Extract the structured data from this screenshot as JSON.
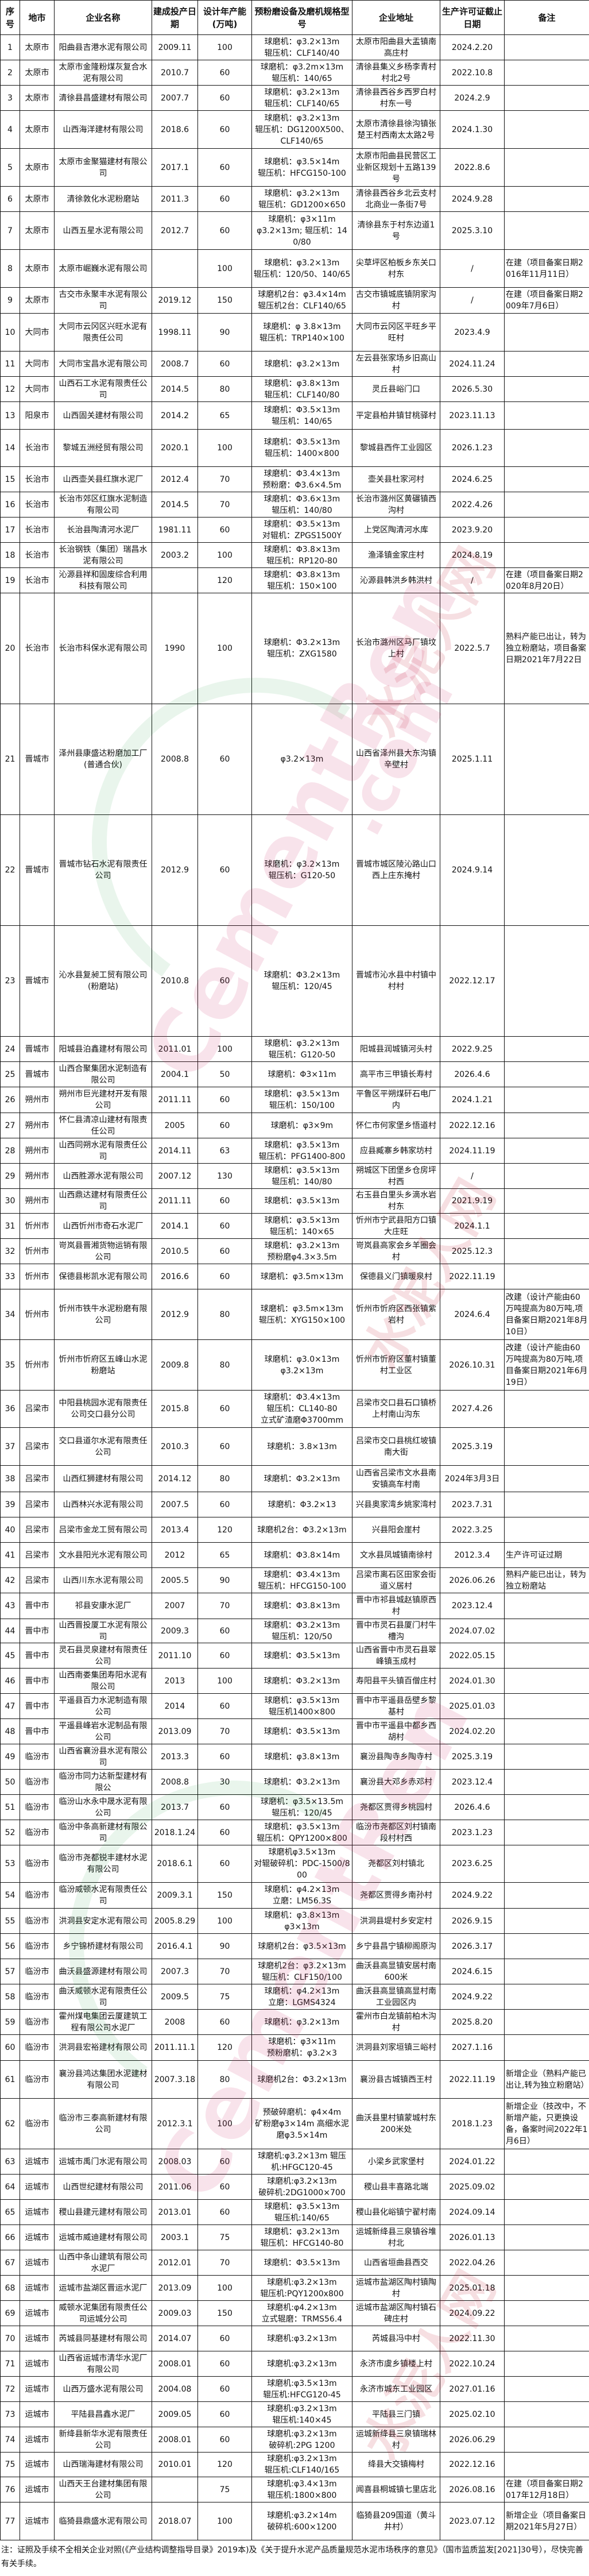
{
  "header": [
    "序号",
    "地市",
    "企业名称",
    "建成投产日期",
    "设计年产能(万吨)",
    "预粉磨设备及磨机规格型号",
    "企业地址",
    "生产许可证截止日期",
    "备注"
  ],
  "rows": [
    [
      "1",
      "太原市",
      "阳曲县吉港水泥有限公司",
      "2009.11",
      "100",
      "球磨机：φ3.2×13m\n辊压机：CLF140/40",
      "太原市阳曲县大盂镇南高庄村",
      "2024.2.20",
      ""
    ],
    [
      "2",
      "太原市",
      "太原市金隆粉煤灰复合水泥有限公司",
      "2010.7",
      "60",
      "球磨机：φ3.2m×13m\n辊压机：140/65",
      "清徐县集义乡杨李青村村北2号",
      "2022.10.8",
      ""
    ],
    [
      "3",
      "太原市",
      "清徐县昌盛建材有限公司",
      "2007.7",
      "60",
      "球磨机：φ3.2×13m\n辊压机：CLF140/65",
      "清徐县西谷乡西罗白村村东一号",
      "2024.2.9",
      ""
    ],
    [
      "4",
      "太原市",
      "山西海洋建材有限公司",
      "2018.6",
      "60",
      "球磨机：φ3.2×13m\n辊压机：DG1200X500、CLF140/65",
      "太原市清徐县徐沟镇张楚王村西南太太路2号",
      "2024.1.30",
      ""
    ],
    [
      "5",
      "太原市",
      "太原市金聚猫建材有限公司",
      "2017.1",
      "60",
      "球磨机：φ3.5×14m\n辊压机：HFCG150-100",
      "太原市阳曲县民营区工业新区规划十五路139号",
      "2022.8.6",
      ""
    ],
    [
      "6",
      "太原市",
      "清徐敦化水泥粉磨站",
      "2011.3",
      "60",
      "球磨机：φ3.2×13m\n辊压机：GD1200×650",
      "清徐县西谷乡北云支村北商业一条街7号",
      "2024.9.28",
      ""
    ],
    [
      "7",
      "太原市",
      "山西五星水泥有限公司",
      "2012.7",
      "60",
      "球磨机：φ3×11m\nφ3.2×13m; 辊压机：140/80",
      "清徐县东于村东边道1号",
      "2025.3.10",
      ""
    ],
    [
      "8",
      "太原市",
      "太原市崛巍水泥有限公司",
      "",
      "100",
      "球磨机：φ3.2×13m\n辊压机：120/50、140/65",
      "尖草坪区柏板乡东关口村东",
      "/",
      "在建（项目备案日期2016年11月11日）"
    ],
    [
      "9",
      "太原市",
      "古交市永聚丰水泥有限公司",
      "2019.12",
      "150",
      "球磨机2台：φ3.4×14m\n辊压机2台：CLF140/65",
      "古交市镇城底镇阴家沟村",
      "/",
      "在建（项目备案日期2009年7月6日）"
    ],
    [
      "10",
      "大同市",
      "大同市云冈区兴旺水泥有限责任公司",
      "1998.11",
      "90",
      "球磨机：φ 3.8×13m\n辊压机：TRP140×100",
      "大同市云冈区平旺乡平旺村",
      "2023.4.9",
      ""
    ],
    [
      "11",
      "大同市",
      "大同市宝昌水泥有限公司",
      "2008.7",
      "60",
      "球磨机：φ3.2×13m",
      "左云县张家场乡旧高山村",
      "2024.11.24",
      ""
    ],
    [
      "12",
      "大同市",
      "山西石工水泥有限责任公司",
      "2014.5",
      "80",
      "球磨机：φ3.8×13m\n辊压机：CLF140/80",
      "灵丘县峪门口",
      "2026.5.30",
      ""
    ],
    [
      "13",
      "阳泉市",
      "山西固关建材有限公司",
      "2014.2",
      "65",
      "球磨机：Φ3.5×13m\n辊压机：140/65",
      "平定县柏井镇甘桃驿村",
      "2023.11.13",
      ""
    ],
    [
      "14",
      "长治市",
      "黎城五洲经贸有限公司",
      "2020.1",
      "100",
      "球磨机：Φ3.5×13m\n辊压机：1400×800",
      "黎城县西仵工业园区",
      "2026.1.23",
      ""
    ],
    [
      "15",
      "长治市",
      "山西壶关县红旗水泥厂",
      "2012.4",
      "70",
      "球磨机：Φ3.4×13m\n预粉磨：Φ3.6×4.5m",
      "壶关县杜家河村",
      "2024.6.25",
      ""
    ],
    [
      "16",
      "长治市",
      "长治市郊区红旗水泥制造有限公司",
      "2014.5",
      "70",
      "球磨机：Φ3.6×13m\n辊压机：140/80",
      "长治市潞州区黄碾镇西沟村",
      "2022.4.26",
      ""
    ],
    [
      "17",
      "长治市",
      "长治县陶清河水泥厂",
      "1981.11",
      "60",
      "球磨机：Φ3.5×13m\n对辊机：ZPGS1500Y",
      "上党区陶清河水库",
      "2023.9.20",
      ""
    ],
    [
      "18",
      "长治市",
      "长治钢铁（集团）瑞昌水泥有限公司",
      "2003.2",
      "100",
      "球磨机：Φ3.8×13m\n辊压机：RP120-80",
      "渔泽镇金家庄村",
      "2024.8.19",
      ""
    ],
    [
      "19",
      "长治市",
      "沁源县祥和固废综合利用科技有限公司",
      "",
      "120",
      "球磨机：Φ3.8×13m\n辊压机：150×100",
      "沁源县韩洪乡韩洪村",
      "/",
      "在建（项目备案日期2020年8月20日）"
    ],
    [
      "20",
      "长治市",
      "长治市科保水泥有限公司",
      "1990",
      "100",
      "球磨机：Φ3.2×13m\n辊压机：ZXG1580",
      "长治市潞州区马厂镇坟上村",
      "2022.5.7",
      "熟料产能已出让，转为独立粉磨站，项目备案日期2021年7月22日"
    ],
    [
      "21",
      "晋城市",
      "泽州县康盛达粉磨加工厂(普通合伙)",
      "2008.8",
      "60",
      "φ3.2×13m",
      "山西省泽州县大东沟镇辛壁村",
      "2025.1.11",
      ""
    ],
    [
      "22",
      "晋城市",
      "晋城市钻石水泥有限责任公司",
      "2012.9",
      "60",
      "球磨机：φ3.2×13m\n辊压机：G120-50",
      "晋城市城区陵沁路山口西上庄东掩村",
      "2024.9.14",
      ""
    ],
    [
      "23",
      "晋城市",
      "沁水县复昶工贸有限公司(粉磨站)",
      "2010.8",
      "60",
      "球磨机：Φ3.2×13m\n辊压机：120/45",
      "晋城市沁水县中村镇中村村",
      "2022.12.17",
      ""
    ],
    [
      "24",
      "晋城市",
      "阳城县泊鑫建材有限公司",
      "2011.01",
      "100",
      "球磨机：φ3.2×13m\n辊压机：G120-50",
      "阳城县润城镇河头村",
      "2022.9.25",
      ""
    ],
    [
      "25",
      "晋城市",
      "山西合聚集团水泥制造有限公司",
      "2004.1",
      "50",
      "球磨机：Φ3×11m",
      "高平市三甲镇长寿村",
      "2026.4.6",
      ""
    ],
    [
      "26",
      "朔州市",
      "朔州市巨光建材开发有限公司",
      "2011.11",
      "60",
      "球磨机：φ3.5×13m\n辊压机：150/100",
      "平鲁区平朔煤矸石电厂内",
      "2024.1.21",
      ""
    ],
    [
      "27",
      "朔州市",
      "怀仁县清凉山建材有限责任公司",
      "2005",
      "60",
      "球磨机：φ3×9m",
      "怀仁市何家堡乡悟道村",
      "2022.12.16",
      ""
    ],
    [
      "28",
      "朔州市",
      "山西同朔水泥有限责任公司",
      "2014.11",
      "63",
      "球磨机：φ3.5×13m\n辊压机：PFG1400-800",
      "应县臧寨乡韩家坊村",
      "2024.11.19",
      ""
    ],
    [
      "29",
      "朔州市",
      "山西胜源水泥有限公司",
      "2007.12",
      "130",
      "球磨机：φ3.5×13m\n辊压机：140/80",
      "朔城区下团堡乡仓房坪村西",
      "/",
      ""
    ],
    [
      "30",
      "朔州市",
      "山西鼎达建材有限责任公司",
      "2011.11",
      "60",
      "球磨机：φ3.5×13m",
      "右玉县白里头乡滴水岩村东",
      "2021.9.19",
      ""
    ],
    [
      "31",
      "忻州市",
      "山西忻州市奇石水泥厂",
      "2014.1",
      "60",
      "球磨机：φ3.5×13m\n辊压机：140×65",
      "忻州市宁武县阳方口镇大庄旺",
      "2024.1.1",
      ""
    ],
    [
      "32",
      "忻州市",
      "岢岚县晋湘货物运销有限公司",
      "2010.5",
      "60",
      "球磨机：φ3.2×13m\n预粉磨φ4.3×3.5m",
      "岢岚县高家会乡羊圈会村",
      "2025.12.3",
      ""
    ],
    [
      "33",
      "忻州市",
      "保德县彬凯水泥有限公司",
      "2016.6",
      "60",
      "球磨机：φ3.5m×13m",
      "保德县义门镇暖泉村",
      "2022.11.19",
      ""
    ],
    [
      "34",
      "忻州市",
      "忻州市铁牛水泥粉磨有限公司",
      "2012.9",
      "80",
      "球磨机：φ3.5m×13m\n辊压机：XYG150×100",
      "忻州市忻府区西张镇紫岩村",
      "2024.6.4",
      "改建（设计产能由60万吨提高为80万吨,项目备案日期2021年8月10日）"
    ],
    [
      "35",
      "忻州市",
      "忻州市忻府区五峰山水泥粉磨站",
      "2009.8",
      "80",
      "球磨机：φ3.0×13m\nφ3.2×13m",
      "忻州市忻府区董村镇董村工业区",
      "2026.10.31",
      "改建（设计产能由60万吨提高为80万吨,项目备案日期2021年6月19日）"
    ],
    [
      "36",
      "吕梁市",
      "中阳县桃园水泥有限责任公司交口县分公司",
      "2015.8",
      "60",
      "球磨机：Φ3.4×13m\n辊压机：CL140-80\n立式矿渣磨Φ3700mm",
      "吕梁市交口县石口镇桥上村南山沟东",
      "2027.4.26",
      ""
    ],
    [
      "37",
      "吕梁市",
      "交口县道尔水泥有限责任公司",
      "2010.3",
      "60",
      "球磨机：3.8×13m",
      "吕梁市交口县桃红坡镇南大街",
      "2025.3.19",
      ""
    ],
    [
      "38",
      "吕梁市",
      "山西红狮建材有限公司",
      "2014.12",
      "80",
      "球磨机：Φ3.2×13m",
      "山西省吕梁市文水县南安镇高车村南",
      "2024年3月3日",
      ""
    ],
    [
      "39",
      "吕梁市",
      "山西林兴水泥有限公司",
      "2007.5",
      "60",
      "球磨机：Φ3.2×13",
      "兴县奥家湾乡姚家湾村",
      "2023.7.31",
      ""
    ],
    [
      "40",
      "吕梁市",
      "吕梁市金龙工贸有限公司",
      "2013.4",
      "120",
      "球磨机2台：Φ3.2×13m",
      "兴县阳会崖村",
      "2022.3.25",
      ""
    ],
    [
      "41",
      "吕梁市",
      "文水县阳光水泥有限公司",
      "2012",
      "65",
      "球磨机：Φ3.8×14m",
      "文水县凤城镇南徐村",
      "2012.3.4",
      "生产许可证过期"
    ],
    [
      "42",
      "吕梁市",
      "山西川东水泥有限公司",
      "2005.5",
      "90",
      "球磨机：Φ3.4×13m\n辊压机：HFCG150-100",
      "吕梁市离石区田家会街道义居村",
      "2026.06.26",
      "熟料产能已出让，转为独立粉磨站"
    ],
    [
      "43",
      "晋中市",
      "祁县安康水泥厂",
      "2007",
      "70",
      "球磨机：Φ3.8×13m",
      "晋中市祁县城赵镇原西村",
      "2023.12.4",
      ""
    ],
    [
      "44",
      "晋中市",
      "山西晋投厦工水泥有限公司",
      "2009.3",
      "60",
      "球磨机：Φ3.2×13m\n辊压机：120/50",
      "晋中市灵石县厦门村牛槽沟",
      "2024.07.02",
      ""
    ],
    [
      "45",
      "晋中市",
      "灵石县灵泉建材有限责任公司",
      "2011.10",
      "60",
      "球磨机：Φ3.5×13m",
      "山西省晋中市灵石县翠峰镇玉成村",
      "2022.05.15",
      ""
    ],
    [
      "46",
      "晋中市",
      "山西南娄集团寿阳水泥有限公司",
      "2013",
      "100",
      "球磨机：Φ3.2×13m",
      "寿阳县平头镇百僧庄村",
      "2024.01.30",
      ""
    ],
    [
      "47",
      "晋中市",
      "平遥县百力水泥制造有限公司",
      "2014",
      "60",
      "球磨机：φ3.5×13m\n辊压机1400×800",
      "晋中市平遥县岳壁乡黎基村",
      "2025.01.03",
      ""
    ],
    [
      "48",
      "晋中市",
      "平遥县峰岩水泥制品有限公司",
      "2013.09",
      "70",
      "球磨机：Φ3.5×13m",
      "晋中市平遥县中都乡西胡村",
      "2024.02.20",
      ""
    ],
    [
      "49",
      "临汾市",
      "山西省襄汾县水泥有限公司",
      "2013.3",
      "60",
      "球磨机：φ3.8×13m",
      "襄汾县陶寺乡陶寺村",
      "2025.3.19",
      ""
    ],
    [
      "50",
      "临汾市",
      "临汾市同力达新型建材有限公",
      "2008.8",
      "30",
      "球磨机：Φ3.2×13m",
      "襄汾县大邓乡赤邓村",
      "2023.12.4",
      ""
    ],
    [
      "51",
      "临汾市",
      "临汾山水永中晟水泥有限公司",
      "2013.7",
      "60",
      "球磨机：φ3.5×13.5m\n辊压机：120/45",
      "尧都区贾得乡桃园村",
      "2026.4.6",
      ""
    ],
    [
      "52",
      "临汾市",
      "临汾中条高新建材有限公司",
      "2018.1.24",
      "60",
      "球磨机：φ3.5×13m\n辊压机：QPY1200×800",
      "临汾市尧都区刘村镇南段村村西",
      "2023.1.23",
      ""
    ],
    [
      "53",
      "临汾市",
      "临汾市尧都锐丰建材水泥有限公司",
      "2018.6.1",
      "60",
      "球磨机φ3.5×13m\n对辊破碎机：PDC-1500/800",
      "尧都区刘村镇北",
      "2023.6.25",
      ""
    ],
    [
      "54",
      "临汾市",
      "临汾威顿水泥有限责任公司",
      "2009.3.1",
      "150",
      "球磨机：φ4.2×13m\n立磨：LM56.3S",
      "尧都区贾得乡南孙村",
      "2024.9.22",
      ""
    ],
    [
      "55",
      "临汾市",
      "洪洞县安定水泥有限公司",
      "2005.8.29",
      "100",
      "球磨机：φ3.8×13m\nφ3×13m",
      "洪洞县堤村乡安定村",
      "2026.9.15",
      ""
    ],
    [
      "56",
      "临汾市",
      "乡宁锦桥建材有限公司",
      "2016.4.1",
      "90",
      "球磨机2台：φ3.5×13m",
      "乡宁县昌宁镇柳阁原沟",
      "2026.3.17",
      ""
    ],
    [
      "57",
      "临汾市",
      "曲沃县盛源建材有限公司",
      "2007.3",
      "70",
      "球磨机2台：φ3.2×13m\n辊压机：CLF150/100",
      "曲沃县高显镇安居村南600米",
      "2024.6.15",
      ""
    ],
    [
      "58",
      "临汾市",
      "曲沃威顿水泥有限责任公司",
      "2009.5",
      "75",
      "球磨机：φ4.2×13m\n立磨：LGMS4324",
      "曲沃县高显镇高显村南工业园区内",
      "2024.9.22",
      ""
    ],
    [
      "59",
      "临汾市",
      "霍州煤电集团云厦建筑工程有限公司水泥厂",
      "2008",
      "60",
      "球磨机：φ3.2×13m",
      "霍州市白龙镇前柏木沟村",
      "2025.8.20",
      ""
    ],
    [
      "60",
      "临汾市",
      "洪洞县宏裕建材有限公司",
      "2011.11.1",
      "120",
      "球磨机：φ3×11m\n预粉磨机：φ3.2×3",
      "洪洞县刘家垣镇三峪村",
      "2027.1.16",
      ""
    ],
    [
      "61",
      "临汾市",
      "襄汾县鸿达集团水泥建材有限公司",
      "2007.3.18",
      "80",
      "球磨机2台：Φ3.2×13m",
      "襄汾县古城镇西王村",
      "2022.11.19",
      "新增企业（熟料产能已出让,转为独立粉磨站）"
    ],
    [
      "62",
      "临汾市",
      "临汾市三泰高新建材有限公司",
      "2012.3.1",
      "100",
      "预破碎磨机：φ4×4m\n矿粉磨φ3×14m 高细水泥磨φ3.5×14m",
      "曲沃县里村镇蒙城村东200米处",
      "2018.1.23",
      "新增企业（技改中，不新增产能，只更换设备，备案时间2022年1月6日）"
    ],
    [
      "63",
      "运城市",
      "运城市禹门水泥有限公司",
      "2008.03",
      "60",
      "球磨机:φ3.2×13m 辊压机:HFGC120-45",
      "小梁乡武家堡村",
      "2024.01.22",
      ""
    ],
    [
      "64",
      "运城市",
      "山西世纪建材有限公司",
      "2011.06",
      "60",
      "球磨机:φ3.2×13m\n破碎机:2DG1000×700",
      "稷山县丰喜路北端",
      "2025.09.02",
      ""
    ],
    [
      "65",
      "运城市",
      "稷山县建元建材有限公司",
      "2013.01",
      "60",
      "球磨机：φ3.5×13m\n辊压机:140/65",
      "稷山县化峪镇宁翟村南",
      "2024.09.14",
      ""
    ],
    [
      "66",
      "运城市",
      "运城市威迪建材有限公司",
      "2003.1",
      "75",
      "球磨机：φ3.2×13m\n辊压机：HFCG140-80",
      "运城新绛县三泉镇谷堆村北",
      "2026.01.13",
      ""
    ],
    [
      "67",
      "运城市",
      "山西中条山建筑有限公司水泥厂",
      "2012.01",
      "70",
      "球磨机：Φ3.5×13m",
      "山西省垣曲县西交",
      "2022.04.26",
      ""
    ],
    [
      "68",
      "运城市",
      "运城市盐湖区晋运水泥厂",
      "2013.09",
      "100",
      "球磨机:φ3.2×13m\n辊压机:PQY1200x800",
      "运城市盐湖区陶村镇陶村",
      "2025.01.18",
      ""
    ],
    [
      "69",
      "运城市",
      "威顿水泥集团有限责任公司运城分公司",
      "2009.03",
      "150",
      "球磨机:φ4.2×13m\n立式辊磨：TRMS56.4",
      "运城市盐湖区陶村镇石碑庄村",
      "2024.09.22",
      ""
    ],
    [
      "70",
      "运城市",
      "芮城县同基建材有限公司",
      "2014.07",
      "60",
      "球磨机:φ3.2×13m",
      "芮城县冯中村",
      "2022.11.30",
      ""
    ],
    [
      "71",
      "运城市",
      "山西省运城市清华水泥厂有限公司",
      "2008.01",
      "60",
      "球磨机:φ3.2×13m",
      "永济市虞乡镇楼上村",
      "2022.10.24",
      ""
    ],
    [
      "72",
      "运城市",
      "山西万盛水泥有限公司",
      "2004.08",
      "60",
      "球磨机:φ3.5×13m\n辊压机:HFCG120-45",
      "永济市城东工业园区",
      "2027.01.16",
      ""
    ],
    [
      "73",
      "运城市",
      "平陆县昌鑫水泥厂",
      "2009.05",
      "60",
      "球磨机:φ3.2×13m\n辊压机:140×45",
      "平陆县三门镇",
      "2025.02.10",
      ""
    ],
    [
      "74",
      "运城市",
      "新绛县新华水泥有限责任公司",
      "2008.01",
      "60",
      "球磨机:φ3.2×13m\n破碎机:2PG 1200",
      "运城新绛县三泉镇瑞林村",
      "2026.06.29",
      ""
    ],
    [
      "75",
      "运城市",
      "山西瑞海建材有限公司",
      "2010.01",
      "120",
      "球磨机:φ3.2×13m\n辊压机:CLF140/165",
      "绛县大交镇梅村",
      "2022.12.16",
      ""
    ],
    [
      "76",
      "运城市",
      "山西天王台建材集团有限公司",
      "",
      "75",
      "球磨机:φ3.4×13m\n辊压机:1800×800",
      "闻喜县桐城镇七里店北",
      "2026.08.16",
      "在建（项目备案日期2017年12月18日）"
    ],
    [
      "77",
      "运城市",
      "临猗县鼎盛水泥有限公司",
      "2018.07",
      "100",
      "球磨机:φ3.2×14m\n破碎机:600×1200",
      "临猗县209国道（黄斗井村）",
      "2023.07.12",
      "新增企业（项目备案日期2021年5月27日）"
    ]
  ],
  "note": "注：证照及手续不全相关企业对照(《产业结构调整指导目录》2019本)及《关于提升水泥产品质量规范水泥市场秩序的意见》（国市监质监发[2021]30号），尽快完善有关手续。",
  "watermark": {
    "en": "CementRen",
    "cn": "水泥人网",
    "domain": ".com"
  }
}
